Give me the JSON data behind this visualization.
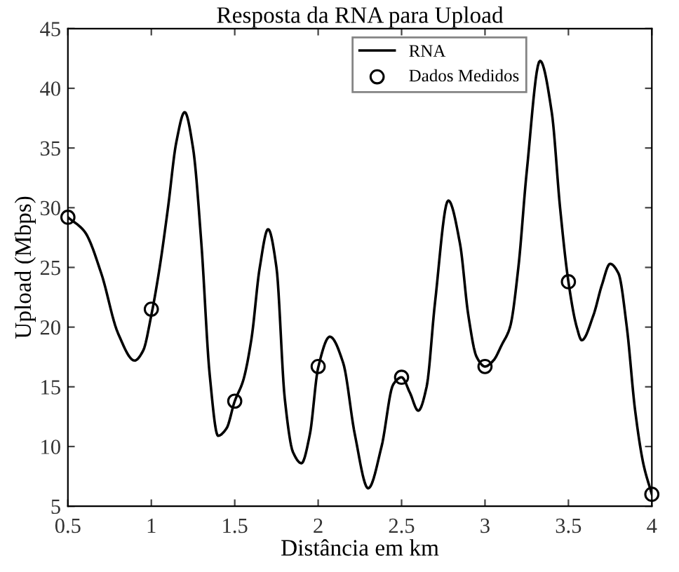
{
  "chart_data": {
    "type": "line",
    "title": "Resposta da RNA para Upload",
    "xlabel": "Distância em km",
    "ylabel": "Upload (Mbps)",
    "xlim": [
      0.5,
      4
    ],
    "ylim": [
      5,
      45
    ],
    "xticks": [
      0.5,
      1,
      1.5,
      2,
      2.5,
      3,
      3.5,
      4
    ],
    "yticks": [
      5,
      10,
      15,
      20,
      25,
      30,
      35,
      40,
      45
    ],
    "grid": false,
    "legend": "top right",
    "series": [
      {
        "name": "RNA",
        "color": "#000000",
        "marker": "none",
        "line_style": "solid",
        "x": [
          0.5,
          0.6,
          0.7,
          0.8,
          0.9,
          0.95,
          1.0,
          1.05,
          1.1,
          1.15,
          1.2,
          1.25,
          1.3,
          1.35,
          1.4,
          1.45,
          1.5,
          1.55,
          1.6,
          1.65,
          1.7,
          1.75,
          1.8,
          1.85,
          1.9,
          1.95,
          2.0,
          2.07,
          2.15,
          2.22,
          2.3,
          2.38,
          2.45,
          2.5,
          2.55,
          2.6,
          2.65,
          2.7,
          2.78,
          2.85,
          2.9,
          2.95,
          3.0,
          3.05,
          3.1,
          3.15,
          3.2,
          3.25,
          3.33,
          3.4,
          3.45,
          3.5,
          3.55,
          3.58,
          3.65,
          3.7,
          3.75,
          3.8,
          3.85,
          3.9,
          3.95,
          4.0
        ],
        "values": [
          29.2,
          28,
          24.5,
          19.5,
          17.2,
          18,
          21,
          25,
          30,
          35.5,
          38,
          35,
          27,
          16,
          10.9,
          11.5,
          13.8,
          15.5,
          19,
          25,
          28.2,
          25,
          14,
          9.5,
          8.6,
          11,
          16.6,
          19.2,
          17,
          11,
          6.5,
          10,
          15.2,
          15.8,
          14.5,
          13,
          15,
          22,
          30.6,
          27,
          21,
          17.5,
          16.7,
          17.2,
          18.5,
          20,
          25,
          33,
          42.3,
          38,
          30,
          23.8,
          20,
          18.9,
          21,
          23.5,
          25.3,
          24.5,
          20,
          13,
          8.5,
          6
        ]
      },
      {
        "name": "Dados Medidos",
        "type": "scatter",
        "color": "#000000",
        "marker": "circle",
        "x": [
          0.5,
          1,
          1.5,
          2,
          2.5,
          3,
          3.5,
          4
        ],
        "values": [
          29.2,
          21.5,
          13.8,
          16.7,
          15.8,
          16.7,
          23.8,
          6.0
        ]
      }
    ]
  }
}
